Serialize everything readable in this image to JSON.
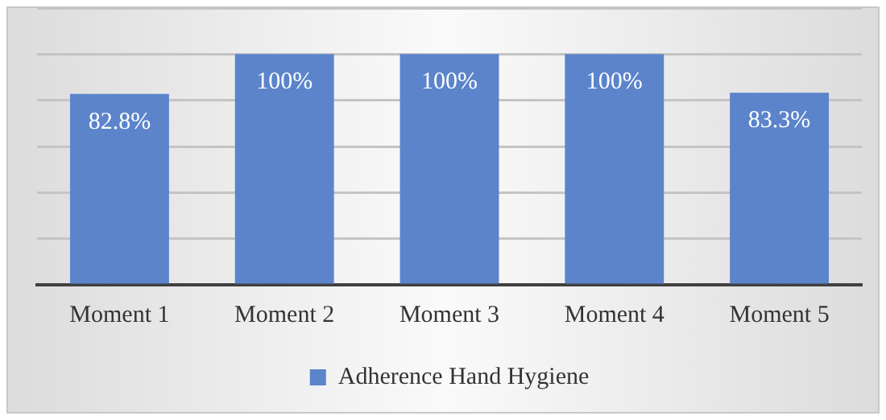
{
  "chart_data": {
    "type": "bar",
    "categories": [
      "Moment 1",
      "Moment 2",
      "Moment 3",
      "Moment 4",
      "Moment 5"
    ],
    "series": [
      {
        "name": "Adherence Hand Hygiene",
        "color": "#5b84cb",
        "values": [
          82.8,
          100,
          100,
          100,
          83.3
        ],
        "value_labels": [
          "82.8%",
          "100%",
          "100%",
          "100%",
          "83.3%"
        ]
      }
    ],
    "ylim": [
      0,
      120
    ],
    "yticks": [
      {
        "value": 0,
        "label": null
      },
      {
        "value": 20,
        "label": null
      },
      {
        "value": 40,
        "label": null
      },
      {
        "value": 60,
        "label": null
      },
      {
        "value": 80,
        "label": null
      },
      {
        "value": 100,
        "label": null
      },
      {
        "value": 120,
        "label": null
      }
    ],
    "tick_labels": "x",
    "grid": "y",
    "legend": "bottom"
  }
}
